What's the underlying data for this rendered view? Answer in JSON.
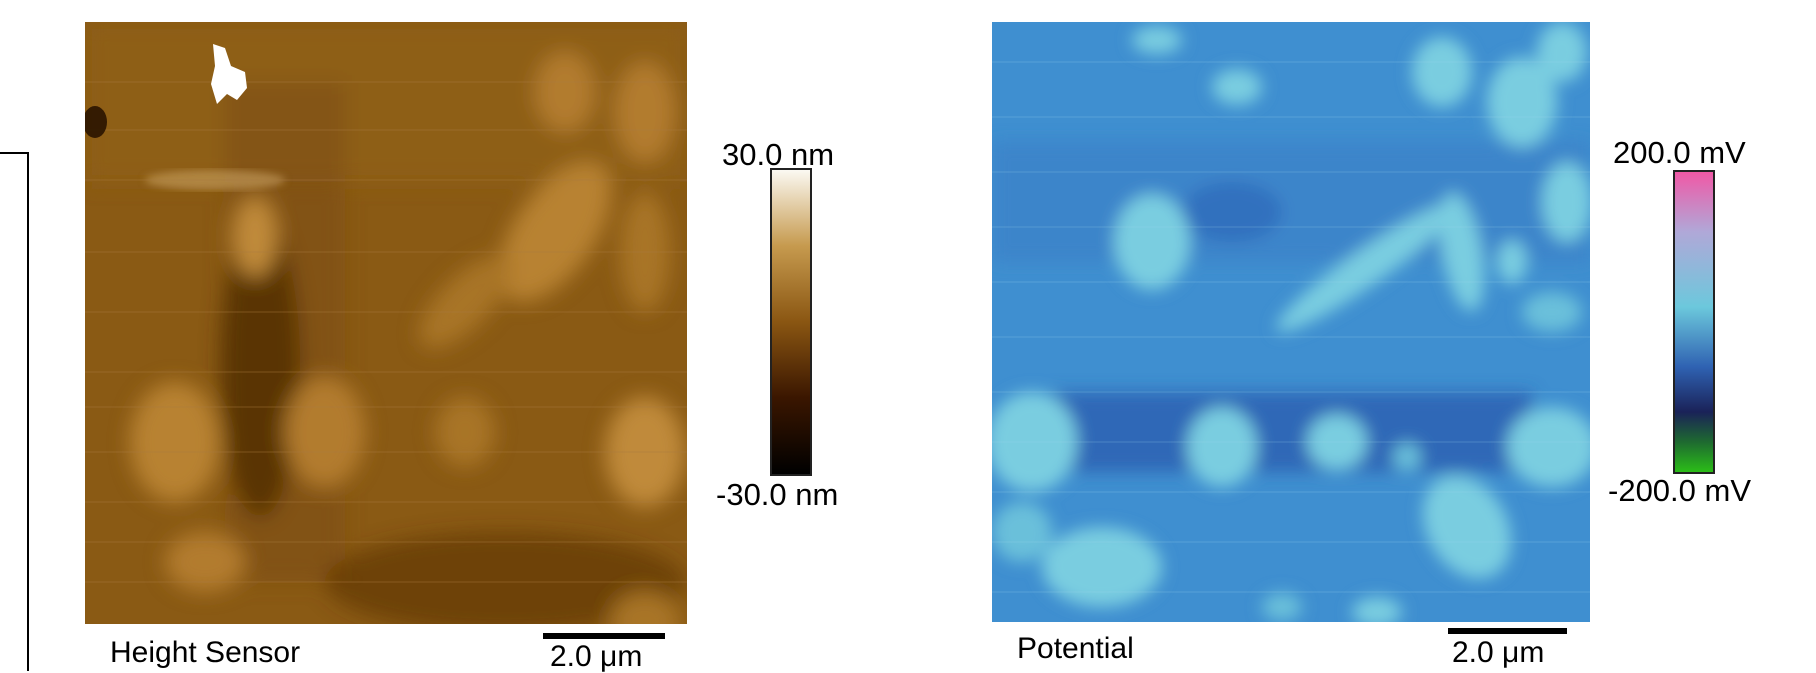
{
  "panels": [
    {
      "caption": "Height Sensor",
      "scale_bar_label": "2.0 μm",
      "colorbar": {
        "max_label": "30.0 nm",
        "min_label": "-30.0 nm",
        "colors": [
          "#f8f5ee",
          "#b07a2a",
          "#6a3a0a",
          "#2a0a00",
          "#000000"
        ]
      }
    },
    {
      "caption": "Potential",
      "scale_bar_label": "2.0 μm",
      "colorbar": {
        "max_label": "200.0 mV",
        "min_label": "-200.0 mV",
        "colors": [
          "#f062a8",
          "#6ec8dc",
          "#2a6ab8",
          "#1a2a6a",
          "#2ab01a"
        ]
      }
    }
  ]
}
